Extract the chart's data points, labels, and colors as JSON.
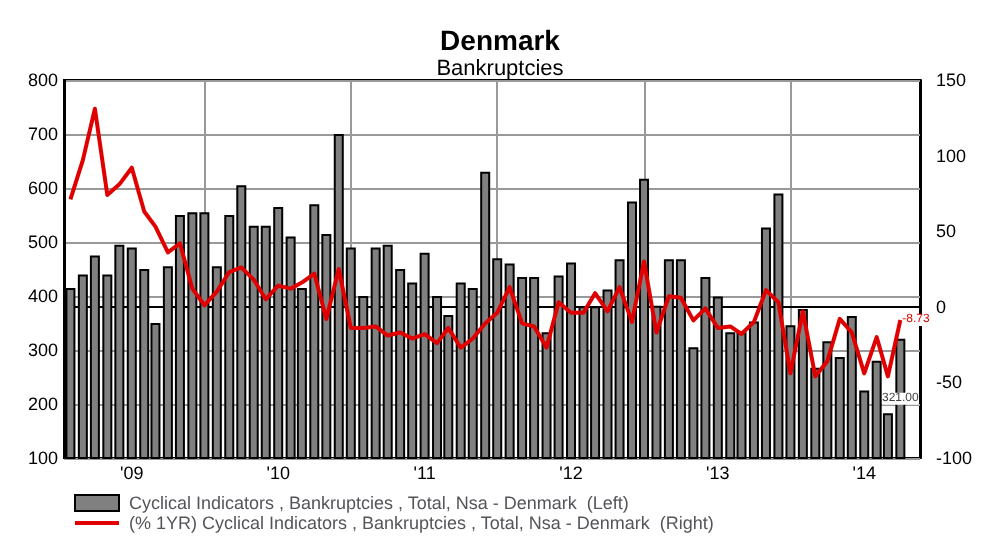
{
  "chart_data": {
    "type": "bar",
    "title": "Denmark",
    "subtitle": "Bankruptcies",
    "x": [
      "2008-08",
      "2008-09",
      "2008-10",
      "2008-11",
      "2008-12",
      "2009-01",
      "2009-02",
      "2009-03",
      "2009-04",
      "2009-05",
      "2009-06",
      "2009-07",
      "2009-08",
      "2009-09",
      "2009-10",
      "2009-11",
      "2009-12",
      "2010-01",
      "2010-02",
      "2010-03",
      "2010-04",
      "2010-05",
      "2010-06",
      "2010-07",
      "2010-08",
      "2010-09",
      "2010-10",
      "2010-11",
      "2010-12",
      "2011-01",
      "2011-02",
      "2011-03",
      "2011-04",
      "2011-05",
      "2011-06",
      "2011-07",
      "2011-08",
      "2011-09",
      "2011-10",
      "2011-11",
      "2011-12",
      "2012-01",
      "2012-02",
      "2012-03",
      "2012-04",
      "2012-05",
      "2012-06",
      "2012-07",
      "2012-08",
      "2012-09",
      "2012-10",
      "2012-11",
      "2012-12",
      "2013-01",
      "2013-02",
      "2013-03",
      "2013-04",
      "2013-05",
      "2013-06",
      "2013-07",
      "2013-08",
      "2013-09",
      "2013-10",
      "2013-11",
      "2013-12",
      "2014-01",
      "2014-02",
      "2014-03",
      "2014-04"
    ],
    "series": [
      {
        "name": "Cyclical Indicators , Bankruptcies , Total, Nsa - Denmark  (Left)",
        "color": "#808080",
        "values": [
          415,
          440,
          475,
          440,
          495,
          490,
          450,
          350,
          455,
          550,
          555,
          555,
          455,
          550,
          605,
          530,
          530,
          565,
          510,
          415,
          570,
          515,
          700,
          490,
          400,
          490,
          495,
          450,
          425,
          480,
          400,
          365,
          425,
          415,
          630,
          470,
          460,
          435,
          435,
          333,
          438,
          462,
          381,
          381,
          412,
          468,
          575,
          617,
          382,
          468,
          468,
          305,
          435,
          399,
          333,
          333,
          353,
          527,
          590,
          346,
          376,
          267,
          316,
          287,
          363,
          225,
          280,
          183,
          321
        ],
        "value_labels": [
          null,
          null,
          null,
          null,
          null,
          null,
          null,
          null,
          null,
          null,
          null,
          null,
          null,
          null,
          null,
          null,
          null,
          null,
          null,
          null,
          null,
          null,
          null,
          null,
          null,
          null,
          null,
          null,
          null,
          null,
          null,
          null,
          null,
          null,
          null,
          null,
          null,
          null,
          null,
          null,
          null,
          null,
          null,
          null,
          null,
          null,
          null,
          null,
          null,
          null,
          null,
          null,
          null,
          null,
          null,
          null,
          null,
          null,
          null,
          null,
          null,
          null,
          null,
          null,
          null,
          null,
          null,
          null,
          "321.00"
        ]
      },
      {
        "name": "(% 1YR) Cyclical Indicators , Bankruptcies , Total, Nsa - Denmark  (Right)",
        "type": "line",
        "axis": "y2",
        "color": "#e00000",
        "values": [
          71,
          97,
          131,
          74,
          81,
          92,
          63,
          53,
          36,
          42,
          12,
          1,
          10,
          23,
          26,
          18,
          5,
          14,
          12,
          16,
          22,
          -8,
          25,
          -14,
          -14,
          -13,
          -19,
          -17,
          -21,
          -18,
          -24,
          -14,
          -27,
          -21,
          -11,
          -4,
          13,
          -11,
          -13,
          -27,
          3,
          -4,
          -4,
          9,
          -3,
          13,
          -10,
          30,
          -17,
          7,
          6,
          -9,
          -1,
          -14,
          -13,
          -18,
          -10,
          11,
          3,
          -44,
          -3,
          -46,
          -36,
          -8,
          -17,
          -44,
          -20,
          -46,
          -8.73
        ],
        "value_labels": [
          null,
          null,
          null,
          null,
          null,
          null,
          null,
          null,
          null,
          null,
          null,
          null,
          null,
          null,
          null,
          null,
          null,
          null,
          null,
          null,
          null,
          null,
          null,
          null,
          null,
          null,
          null,
          null,
          null,
          null,
          null,
          null,
          null,
          null,
          null,
          null,
          null,
          null,
          null,
          null,
          null,
          null,
          null,
          null,
          null,
          null,
          null,
          null,
          null,
          null,
          null,
          null,
          null,
          null,
          null,
          null,
          null,
          null,
          null,
          null,
          null,
          null,
          null,
          null,
          null,
          null,
          null,
          null,
          "-8.73"
        ]
      }
    ],
    "xlim": [
      "2008-07-16",
      "2014-05-20"
    ],
    "xticks": [
      {
        "value": "2009-01",
        "label": "'09"
      },
      {
        "value": "2009-07",
        "label": null
      },
      {
        "value": "2010-01",
        "label": "'10"
      },
      {
        "value": "2010-07",
        "label": null
      },
      {
        "value": "2011-01",
        "label": "'11"
      },
      {
        "value": "2011-07",
        "label": null
      },
      {
        "value": "2012-01",
        "label": "'12"
      },
      {
        "value": "2012-07",
        "label": null
      },
      {
        "value": "2013-01",
        "label": "'13"
      },
      {
        "value": "2013-07",
        "label": null
      },
      {
        "value": "2014-01",
        "label": "'14"
      }
    ],
    "ylim": [
      100,
      800
    ],
    "yticks": [
      100,
      200,
      300,
      400,
      500,
      600,
      700,
      800
    ],
    "y2lim": [
      -100,
      150
    ],
    "y2ticks": [
      -100,
      -50,
      0,
      50,
      100,
      150
    ],
    "grid": true,
    "legend": "bottom",
    "marker": "none",
    "line_style": "solid"
  }
}
